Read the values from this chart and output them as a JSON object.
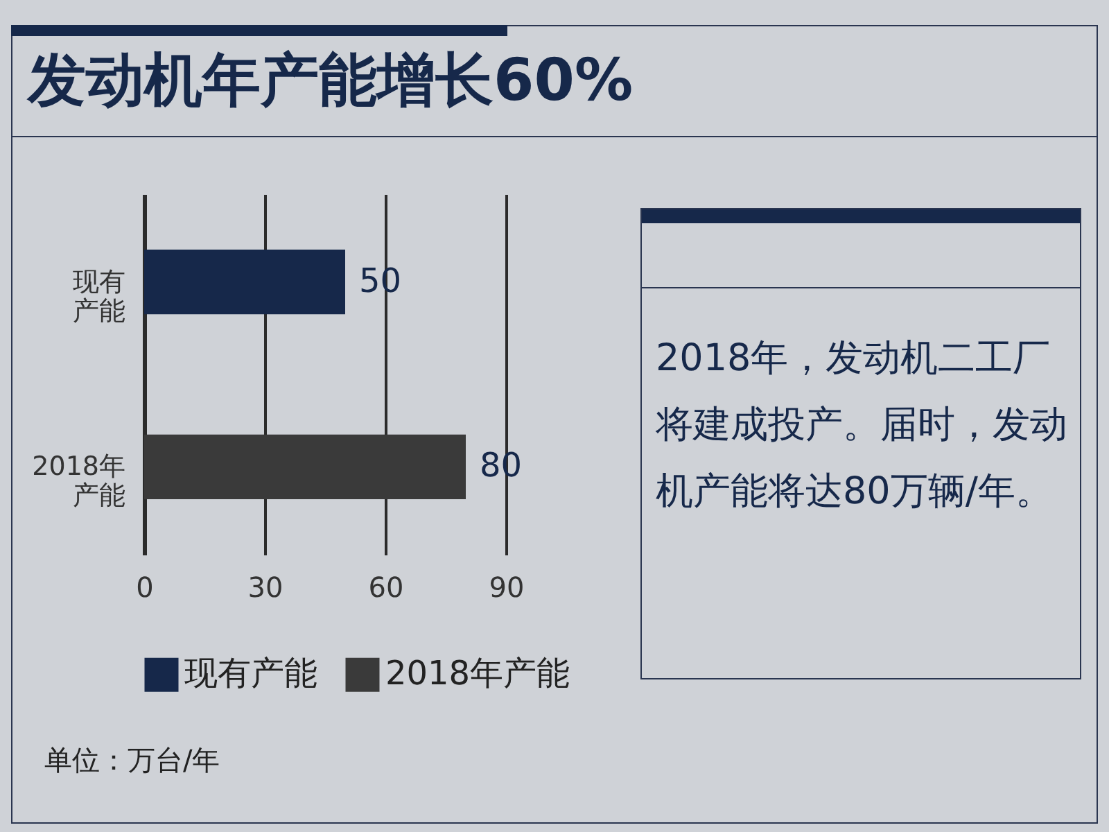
{
  "chart_data": {
    "type": "bar",
    "orientation": "horizontal",
    "title": "发动机年产能增长60%",
    "categories": [
      "现有产能",
      "2018年产能"
    ],
    "series": [
      {
        "name": "现有产能",
        "color": "#16284a",
        "values": [
          50,
          null
        ]
      },
      {
        "name": "2018年产能",
        "color": "#3a3a3a",
        "values": [
          null,
          80
        ]
      }
    ],
    "xlim": [
      0,
      90
    ],
    "xticks": [
      0,
      30,
      60,
      90
    ],
    "grid": "x",
    "legend": "bottom",
    "data_labels": true,
    "annotations": [
      "单位：万台/年",
      "2018年，发动机二工厂将建成投产。届时，发动机产能将达80万辆/年。"
    ]
  }
}
